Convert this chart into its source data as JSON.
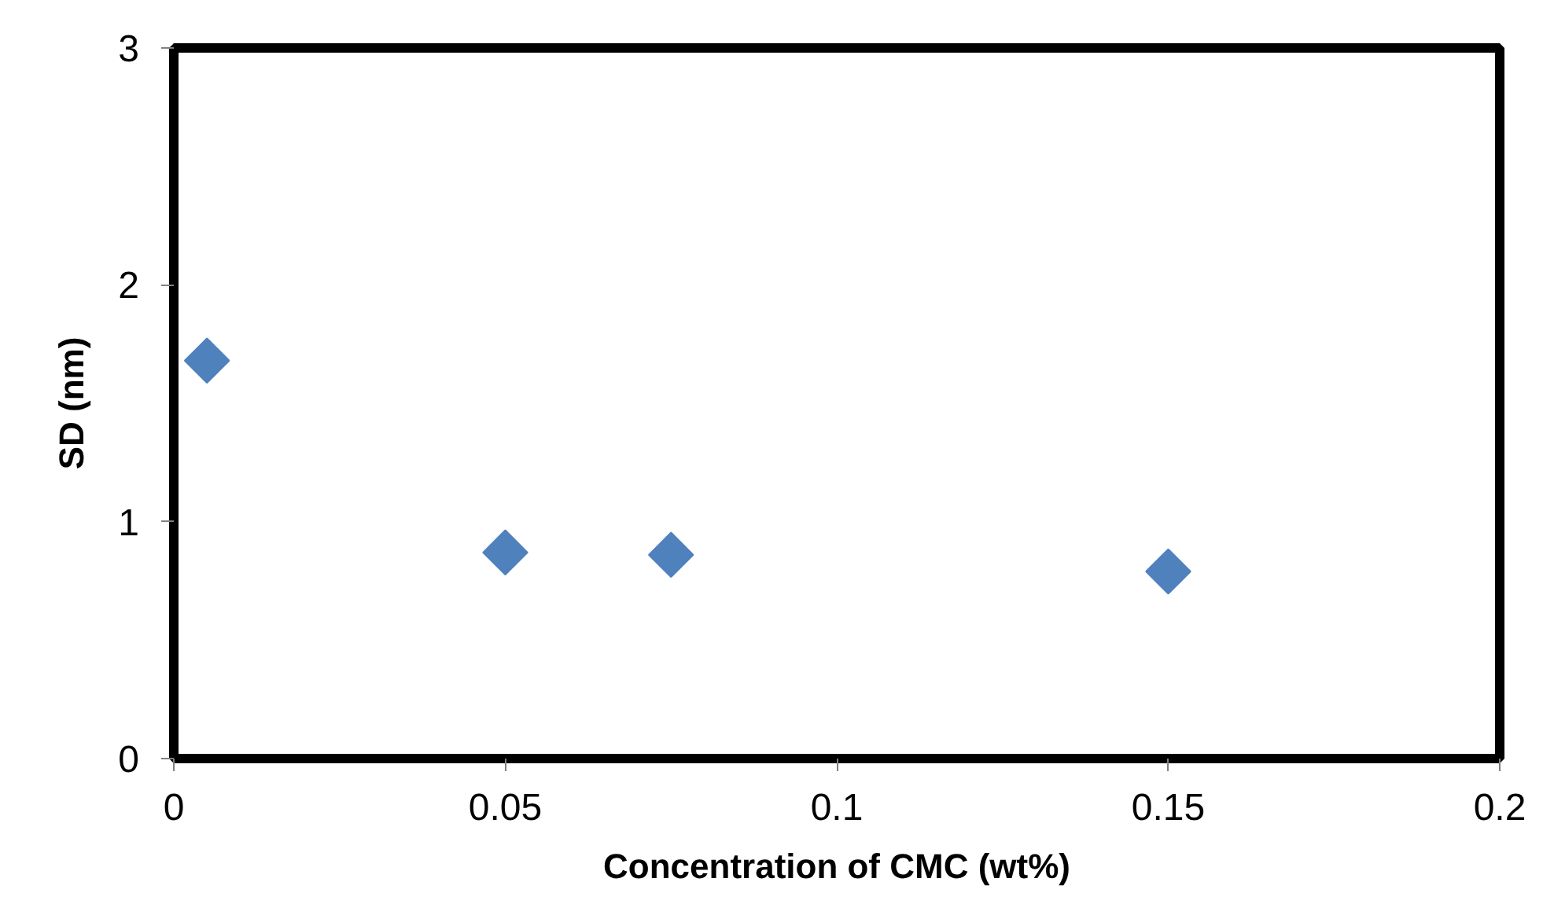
{
  "chart_data": {
    "type": "scatter",
    "xlabel": "Concentration of CMC (wt%)",
    "ylabel": "SD (nm)",
    "x": [
      0.005,
      0.05,
      0.075,
      0.15
    ],
    "series": [
      {
        "color": "#4f81bd",
        "values": [
          1.68,
          0.87,
          0.86,
          0.79
        ]
      }
    ],
    "xlim": [
      0,
      0.2
    ],
    "ylim": [
      0,
      3
    ],
    "xticks": [
      0,
      0.05,
      0.1,
      0.15,
      0.2
    ],
    "yticks": [
      0,
      1,
      2,
      3
    ],
    "marker": "diamond",
    "grid": false
  }
}
